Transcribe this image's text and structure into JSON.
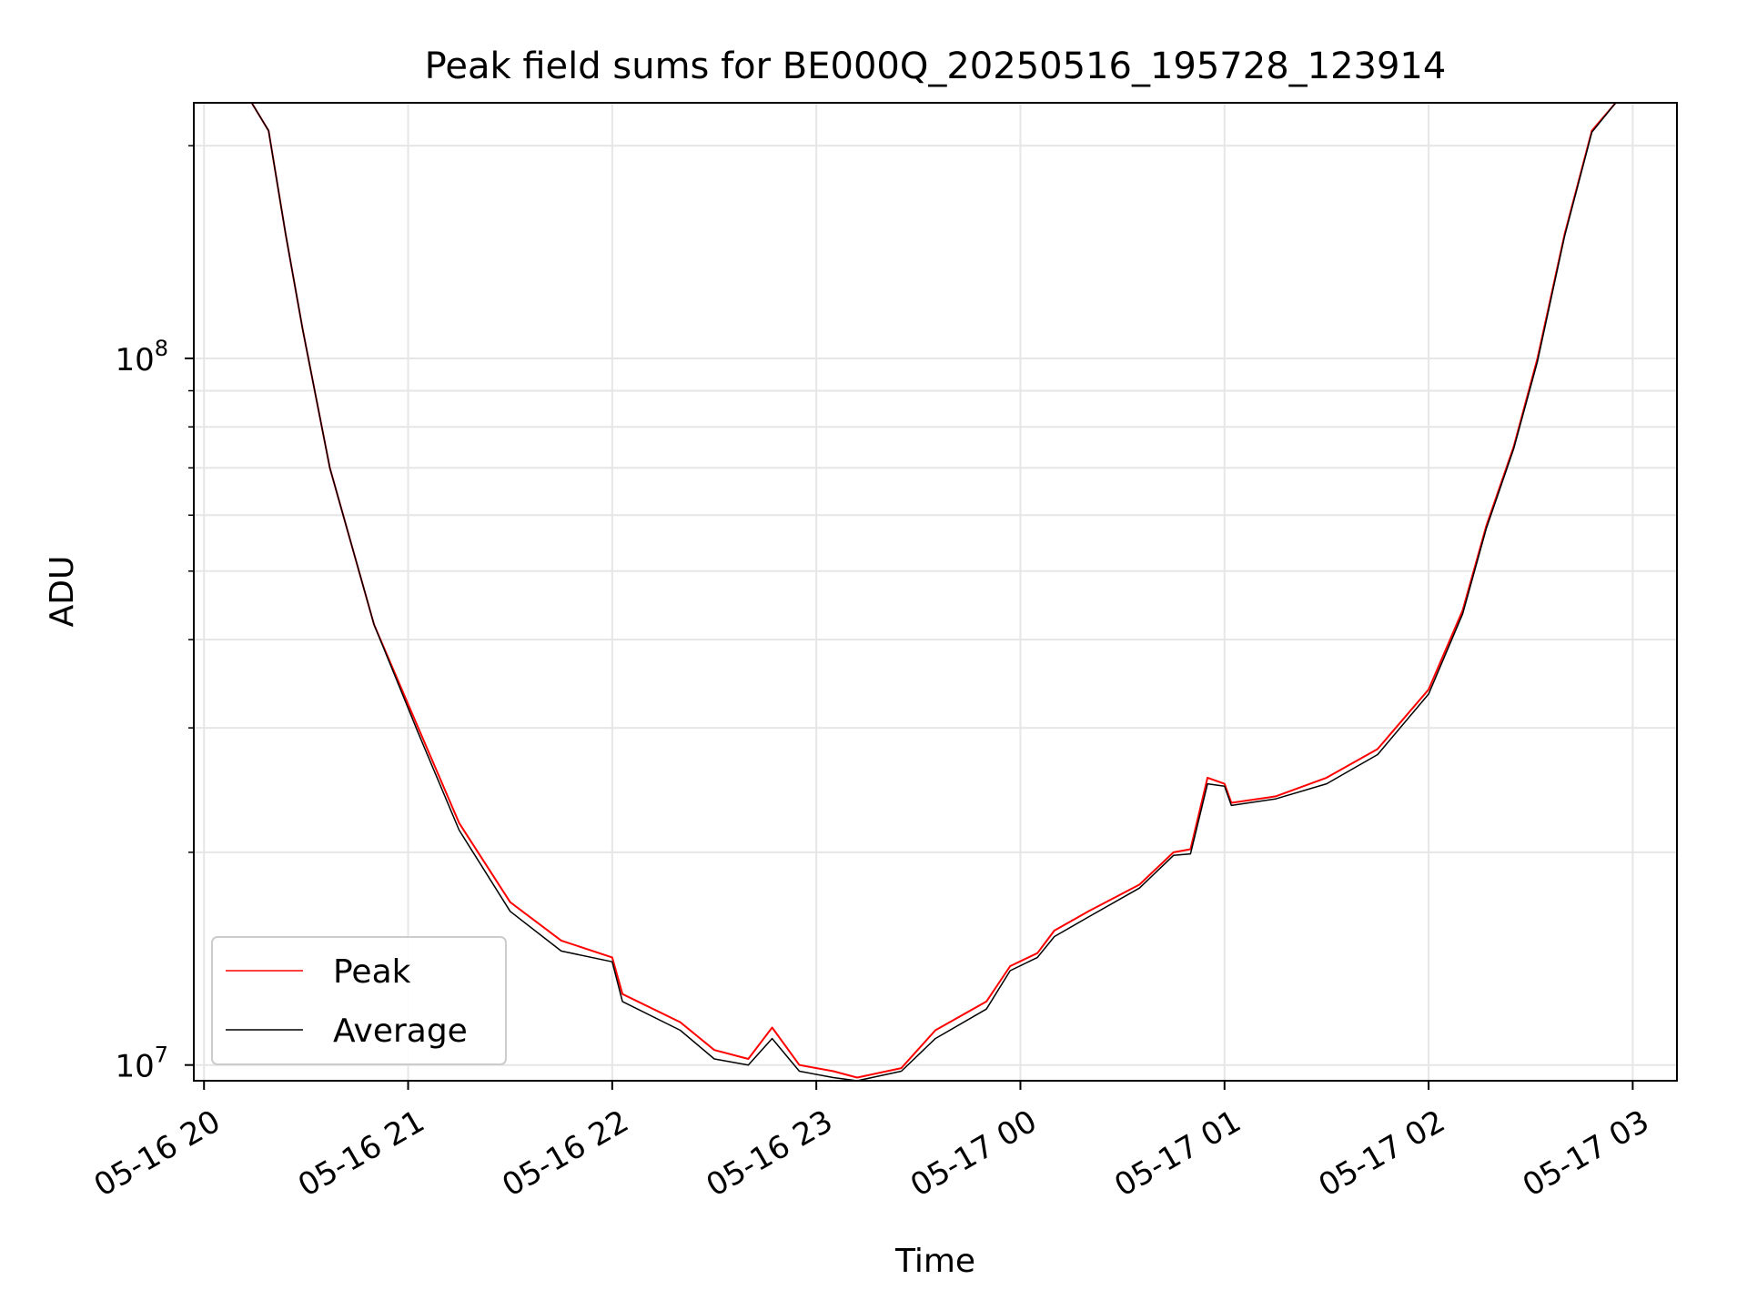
{
  "chart_data": {
    "type": "line",
    "title": "Peak field sums for BE000Q_20250516_195728_123914",
    "xlabel": "Time",
    "ylabel": "ADU",
    "yscale": "log",
    "xlim": [
      "2025-05-16 19:57",
      "2025-05-17 03:13"
    ],
    "ylim": [
      9500000,
      230000000
    ],
    "x_tick_labels": [
      "05-16 20",
      "05-16 21",
      "05-16 22",
      "05-16 23",
      "05-17 00",
      "05-17 01",
      "05-17 02",
      "05-17 03"
    ],
    "x_tick_times": [
      "2025-05-16 20:00",
      "2025-05-16 21:00",
      "2025-05-16 22:00",
      "2025-05-16 23:00",
      "2025-05-17 00:00",
      "2025-05-17 01:00",
      "2025-05-17 02:00",
      "2025-05-17 03:00"
    ],
    "y_major_ticks": [
      10000000,
      100000000
    ],
    "y_tick_labels": [
      {
        "value": 10000000,
        "base": "10",
        "exp": "7"
      },
      {
        "value": 100000000,
        "base": "10",
        "exp": "8"
      }
    ],
    "grid": true,
    "legend_position": "lower-left",
    "series": [
      {
        "name": "Peak",
        "color": "#ff0000",
        "points": [
          [
            "2025-05-16 20:14",
            230000000
          ],
          [
            "2025-05-16 20:19",
            210000000
          ],
          [
            "2025-05-16 20:24",
            150000000
          ],
          [
            "2025-05-16 20:29",
            110000000
          ],
          [
            "2025-05-16 20:37",
            70000000
          ],
          [
            "2025-05-16 20:50",
            42000000
          ],
          [
            "2025-05-16 21:03",
            30000000
          ],
          [
            "2025-05-16 21:15",
            22000000
          ],
          [
            "2025-05-16 21:30",
            17000000
          ],
          [
            "2025-05-16 21:45",
            15000000
          ],
          [
            "2025-05-16 22:00",
            14200000
          ],
          [
            "2025-05-16 22:03",
            12600000
          ],
          [
            "2025-05-16 22:20",
            11500000
          ],
          [
            "2025-05-16 22:30",
            10500000
          ],
          [
            "2025-05-16 22:40",
            10200000
          ],
          [
            "2025-05-16 22:47",
            11300000
          ],
          [
            "2025-05-16 22:55",
            10000000
          ],
          [
            "2025-05-16 23:05",
            9800000
          ],
          [
            "2025-05-16 23:12",
            9600000
          ],
          [
            "2025-05-16 23:25",
            9900000
          ],
          [
            "2025-05-16 23:35",
            11200000
          ],
          [
            "2025-05-16 23:50",
            12300000
          ],
          [
            "2025-05-16 23:57",
            13800000
          ],
          [
            "2025-05-17 00:05",
            14400000
          ],
          [
            "2025-05-17 00:10",
            15500000
          ],
          [
            "2025-05-17 00:20",
            16500000
          ],
          [
            "2025-05-17 00:35",
            18000000
          ],
          [
            "2025-05-17 00:45",
            20000000
          ],
          [
            "2025-05-17 00:50",
            20200000
          ],
          [
            "2025-05-17 00:55",
            25500000
          ],
          [
            "2025-05-17 01:00",
            25000000
          ],
          [
            "2025-05-17 01:02",
            23500000
          ],
          [
            "2025-05-17 01:15",
            24000000
          ],
          [
            "2025-05-17 01:30",
            25500000
          ],
          [
            "2025-05-17 01:45",
            28000000
          ],
          [
            "2025-05-17 02:00",
            34000000
          ],
          [
            "2025-05-17 02:10",
            44000000
          ],
          [
            "2025-05-17 02:17",
            58000000
          ],
          [
            "2025-05-17 02:25",
            75000000
          ],
          [
            "2025-05-17 02:32",
            100000000
          ],
          [
            "2025-05-17 02:40",
            150000000
          ],
          [
            "2025-05-17 02:48",
            210000000
          ],
          [
            "2025-05-17 02:55",
            230000000
          ]
        ]
      },
      {
        "name": "Average",
        "color": "#000000",
        "points": [
          [
            "2025-05-16 20:14",
            230000000
          ],
          [
            "2025-05-16 20:19",
            210000000
          ],
          [
            "2025-05-16 20:24",
            150000000
          ],
          [
            "2025-05-16 20:29",
            110000000
          ],
          [
            "2025-05-16 20:37",
            70000000
          ],
          [
            "2025-05-16 20:50",
            42000000
          ],
          [
            "2025-05-16 21:03",
            29500000
          ],
          [
            "2025-05-16 21:15",
            21500000
          ],
          [
            "2025-05-16 21:30",
            16500000
          ],
          [
            "2025-05-16 21:45",
            14500000
          ],
          [
            "2025-05-16 22:00",
            14000000
          ],
          [
            "2025-05-16 22:03",
            12300000
          ],
          [
            "2025-05-16 22:20",
            11200000
          ],
          [
            "2025-05-16 22:30",
            10200000
          ],
          [
            "2025-05-16 22:40",
            10000000
          ],
          [
            "2025-05-16 22:47",
            10900000
          ],
          [
            "2025-05-16 22:55",
            9800000
          ],
          [
            "2025-05-16 23:05",
            9600000
          ],
          [
            "2025-05-16 23:12",
            9500000
          ],
          [
            "2025-05-16 23:25",
            9800000
          ],
          [
            "2025-05-16 23:35",
            10900000
          ],
          [
            "2025-05-16 23:50",
            12000000
          ],
          [
            "2025-05-16 23:57",
            13600000
          ],
          [
            "2025-05-17 00:05",
            14200000
          ],
          [
            "2025-05-17 00:10",
            15200000
          ],
          [
            "2025-05-17 00:20",
            16200000
          ],
          [
            "2025-05-17 00:35",
            17800000
          ],
          [
            "2025-05-17 00:45",
            19800000
          ],
          [
            "2025-05-17 00:50",
            19900000
          ],
          [
            "2025-05-17 00:55",
            25000000
          ],
          [
            "2025-05-17 01:00",
            24800000
          ],
          [
            "2025-05-17 01:02",
            23300000
          ],
          [
            "2025-05-17 01:15",
            23800000
          ],
          [
            "2025-05-17 01:30",
            25000000
          ],
          [
            "2025-05-17 01:45",
            27500000
          ],
          [
            "2025-05-17 02:00",
            33500000
          ],
          [
            "2025-05-17 02:10",
            43500000
          ],
          [
            "2025-05-17 02:17",
            57500000
          ],
          [
            "2025-05-17 02:25",
            74500000
          ],
          [
            "2025-05-17 02:32",
            99000000
          ],
          [
            "2025-05-17 02:40",
            149000000
          ],
          [
            "2025-05-17 02:48",
            209000000
          ],
          [
            "2025-05-17 02:55",
            230000000
          ]
        ]
      }
    ]
  }
}
